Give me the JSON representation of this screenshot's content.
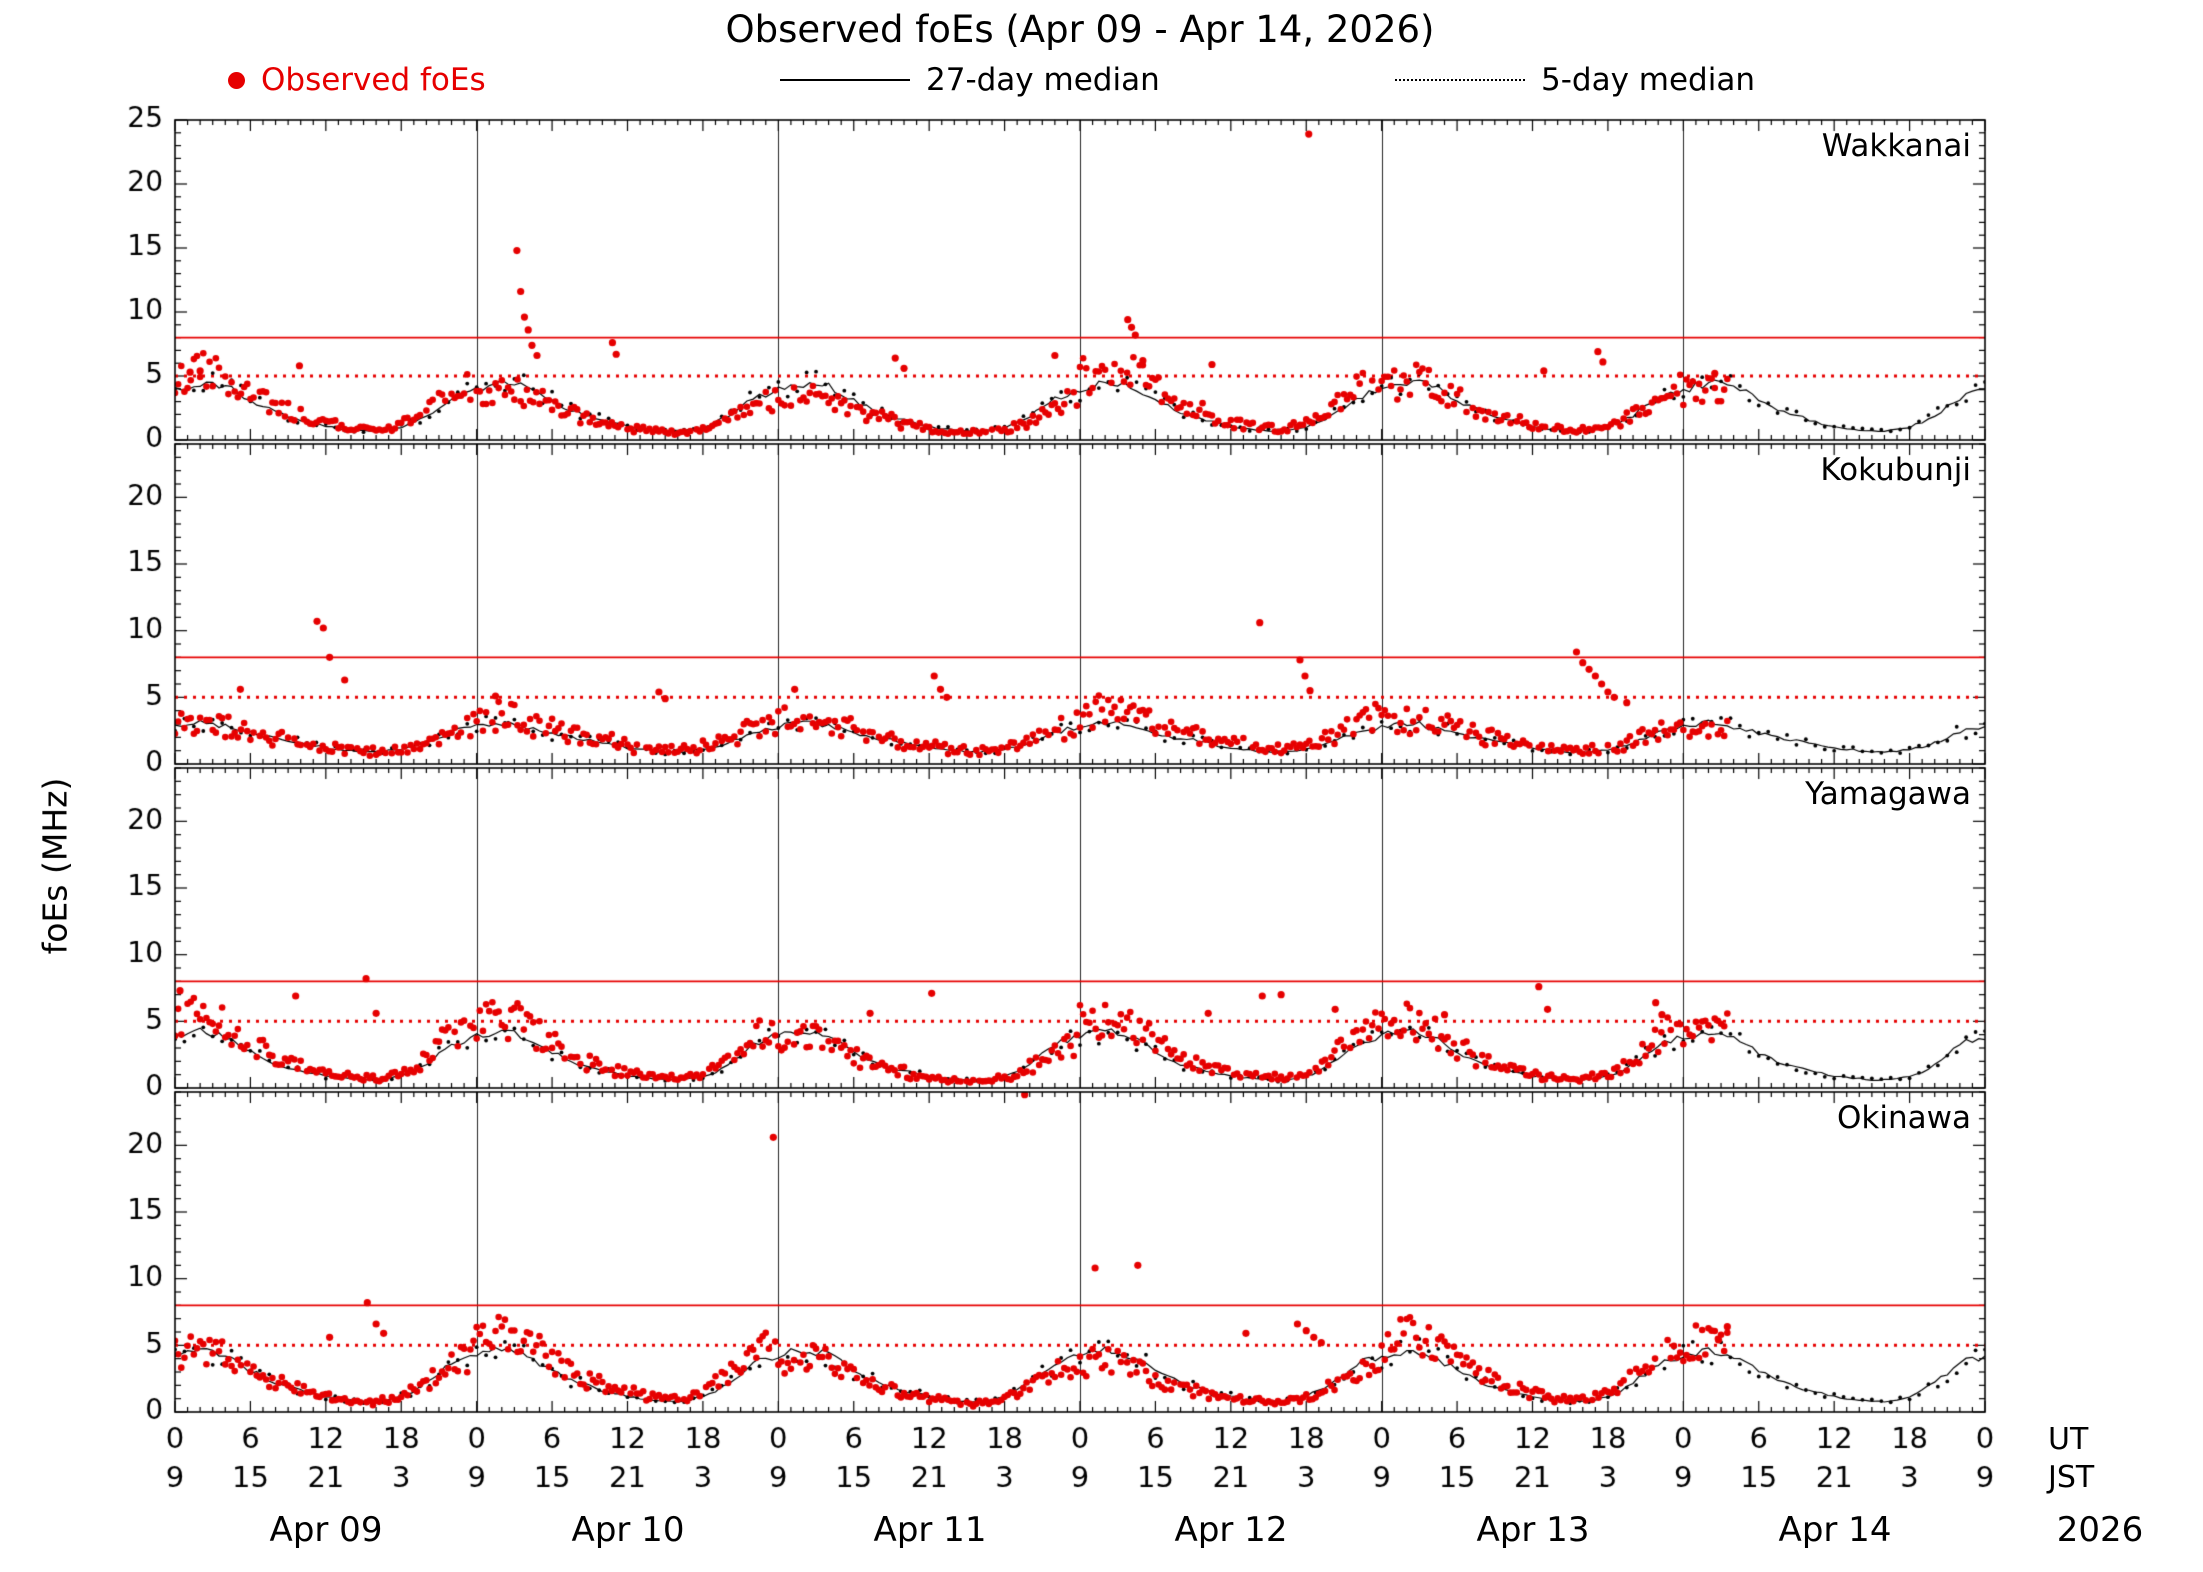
{
  "chart_data": {
    "type": "scatter",
    "title": "Observed foEs (Apr 09 - Apr 14, 2026)",
    "ylabel": "foEs (MHz)",
    "legend": [
      {
        "label": "Observed foEs",
        "style": "red-dot",
        "color": "#e60000"
      },
      {
        "label": "27-day median",
        "style": "solid-line",
        "color": "#000000"
      },
      {
        "label": "5-day median",
        "style": "dotted-line",
        "color": "#000000"
      }
    ],
    "x_axis": {
      "range_hours": [
        0,
        144
      ],
      "major_tick_hours": 6,
      "minor_tick_hours": 1,
      "ut_tick_labels": [
        "0",
        "6",
        "12",
        "18"
      ],
      "jst_tick_labels": [
        "9",
        "15",
        "21",
        "3"
      ],
      "ut_row_label": "UT",
      "jst_row_label": "JST",
      "day_labels": [
        "Apr 09",
        "Apr 10",
        "Apr 11",
        "Apr 12",
        "Apr 13",
        "Apr 14"
      ],
      "year_label": "2026"
    },
    "y_axis": {
      "major_tick": 5,
      "minor_tick": 1
    },
    "reference_lines": {
      "solid_mhz": 8.0,
      "dashed_mhz": 5.0,
      "color": "#e60000"
    },
    "observed_end_hour": 123.5,
    "stations": [
      {
        "name": "Wakkanai",
        "ylim": [
          0,
          25
        ],
        "ytick_label_max": 25,
        "seed": 11,
        "noise": 0.3,
        "median_diurnal_ut": [
          3.9,
          4.2,
          4.4,
          4.4,
          4.2,
          3.7,
          3.1,
          2.6,
          2.2,
          1.9,
          1.6,
          1.3,
          1.1,
          0.9,
          0.8,
          0.7,
          0.7,
          0.8,
          1.0,
          1.4,
          1.9,
          2.6,
          3.2,
          3.6
        ],
        "spikes": [
          [
            1.2,
            5.3
          ],
          [
            2.0,
            5.4
          ],
          [
            9.9,
            5.8
          ],
          [
            27.2,
            14.8
          ],
          [
            27.5,
            11.6
          ],
          [
            27.8,
            9.6
          ],
          [
            28.1,
            8.6
          ],
          [
            28.4,
            7.4
          ],
          [
            28.8,
            6.6
          ],
          [
            34.8,
            7.6
          ],
          [
            35.1,
            6.7
          ],
          [
            57.3,
            6.4
          ],
          [
            58.0,
            5.6
          ],
          [
            70.0,
            6.6
          ],
          [
            75.8,
            9.4
          ],
          [
            76.1,
            8.8
          ],
          [
            76.4,
            8.2
          ],
          [
            77.0,
            6.2
          ],
          [
            82.5,
            5.9
          ],
          [
            90.2,
            23.9
          ],
          [
            108.9,
            5.4
          ],
          [
            113.2,
            6.9
          ],
          [
            113.6,
            6.1
          ],
          [
            122.5,
            5.2
          ]
        ]
      },
      {
        "name": "Kokubunji",
        "ylim": [
          0,
          24
        ],
        "ytick_label_max": 20,
        "seed": 22,
        "noise": 0.32,
        "median_diurnal_ut": [
          2.8,
          3.0,
          3.1,
          3.0,
          2.8,
          2.6,
          2.3,
          2.1,
          1.9,
          1.8,
          1.6,
          1.4,
          1.2,
          1.1,
          1.0,
          0.9,
          0.9,
          1.0,
          1.1,
          1.3,
          1.6,
          2.0,
          2.4,
          2.6
        ],
        "spikes": [
          [
            5.2,
            5.6
          ],
          [
            11.3,
            10.7
          ],
          [
            11.8,
            10.2
          ],
          [
            12.3,
            8.0
          ],
          [
            13.5,
            6.3
          ],
          [
            25.5,
            5.1
          ],
          [
            38.5,
            5.4
          ],
          [
            39.0,
            4.9
          ],
          [
            49.3,
            5.6
          ],
          [
            60.4,
            6.6
          ],
          [
            60.9,
            5.6
          ],
          [
            61.4,
            5.0
          ],
          [
            86.3,
            10.6
          ],
          [
            89.5,
            7.8
          ],
          [
            89.9,
            6.6
          ],
          [
            90.3,
            5.5
          ],
          [
            111.5,
            8.4
          ],
          [
            112.0,
            7.6
          ],
          [
            112.5,
            7.1
          ],
          [
            113.0,
            6.6
          ],
          [
            113.5,
            6.0
          ],
          [
            114.0,
            5.4
          ],
          [
            114.5,
            5.0
          ],
          [
            115.5,
            4.6
          ]
        ]
      },
      {
        "name": "Yamagawa",
        "ylim": [
          0,
          24
        ],
        "ytick_label_max": 20,
        "seed": 33,
        "noise": 0.3,
        "median_diurnal_ut": [
          3.9,
          4.1,
          4.2,
          4.1,
          3.8,
          3.3,
          2.7,
          2.2,
          1.8,
          1.5,
          1.3,
          1.1,
          0.9,
          0.8,
          0.7,
          0.6,
          0.6,
          0.7,
          0.9,
          1.2,
          1.8,
          2.5,
          3.2,
          3.6
        ],
        "spikes": [
          [
            0.4,
            7.3
          ],
          [
            9.6,
            6.9
          ],
          [
            15.2,
            8.2
          ],
          [
            16.0,
            5.6
          ],
          [
            55.3,
            5.6
          ],
          [
            60.2,
            7.1
          ],
          [
            82.2,
            5.6
          ],
          [
            86.5,
            6.9
          ],
          [
            88.0,
            7.0
          ],
          [
            92.3,
            5.9
          ],
          [
            101.0,
            5.5
          ],
          [
            108.5,
            7.6
          ],
          [
            109.2,
            5.9
          ],
          [
            117.8,
            6.4
          ],
          [
            118.3,
            5.5
          ]
        ]
      },
      {
        "name": "Okinawa",
        "ylim": [
          0,
          24
        ],
        "ytick_label_max": 20,
        "seed": 44,
        "noise": 0.26,
        "median_diurnal_ut": [
          4.2,
          4.5,
          4.6,
          4.5,
          4.2,
          3.7,
          3.1,
          2.6,
          2.2,
          1.9,
          1.6,
          1.4,
          1.2,
          1.0,
          0.9,
          0.8,
          0.8,
          0.9,
          1.2,
          1.6,
          2.2,
          2.9,
          3.6,
          4.0
        ],
        "spikes": [
          [
            12.3,
            5.6
          ],
          [
            15.3,
            8.2
          ],
          [
            16.0,
            6.6
          ],
          [
            16.6,
            5.9
          ],
          [
            47.6,
            20.6
          ],
          [
            67.6,
            23.8
          ],
          [
            73.2,
            10.8
          ],
          [
            76.6,
            11.0
          ],
          [
            85.2,
            5.9
          ],
          [
            89.3,
            6.6
          ],
          [
            90.0,
            6.1
          ],
          [
            90.6,
            5.6
          ],
          [
            91.2,
            5.2
          ],
          [
            122.8,
            5.4
          ],
          [
            123.5,
            6.4
          ]
        ]
      }
    ]
  }
}
